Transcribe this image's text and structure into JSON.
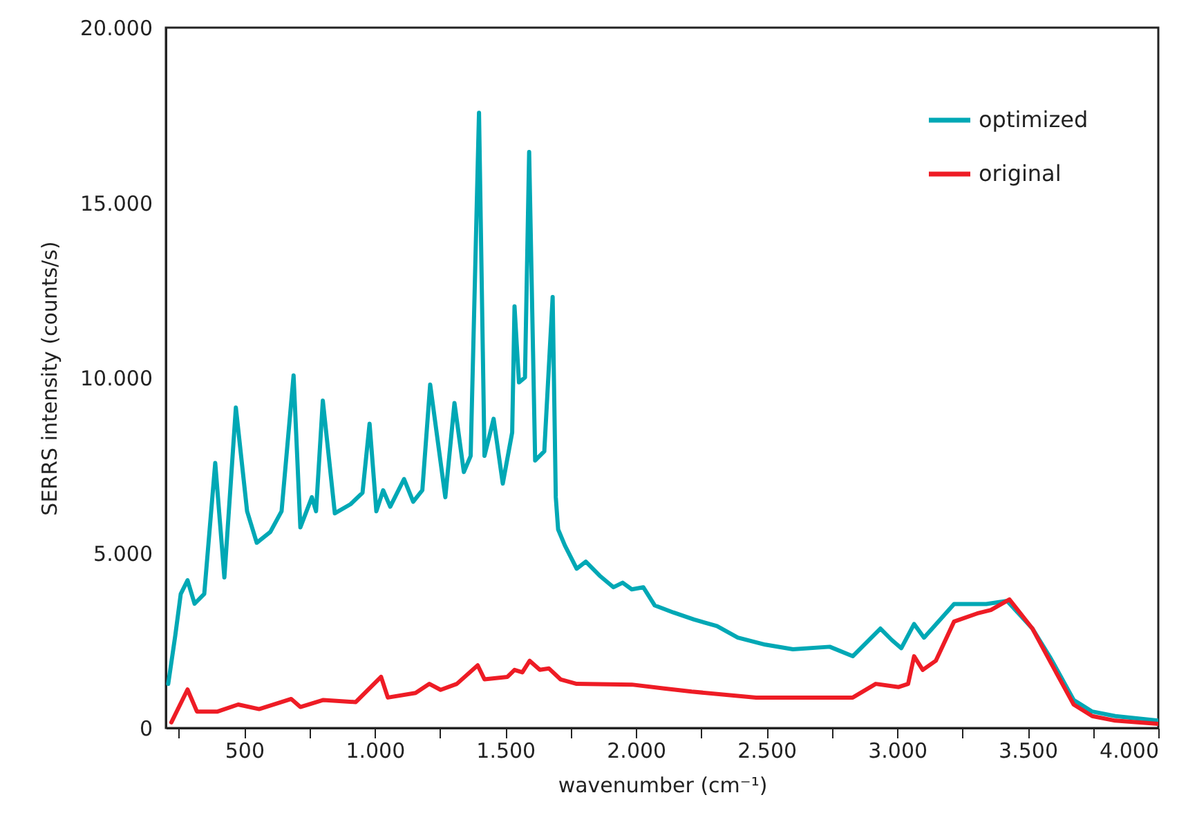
{
  "chart_data": {
    "type": "line",
    "xlabel": "wavenumber (cm⁻¹)",
    "ylabel": "SERRS intensity (counts/s)",
    "xlim": [
      200,
      4000
    ],
    "ylim": [
      0,
      20000
    ],
    "xticks": [
      {
        "value": 250,
        "label": null
      },
      500,
      {
        "value": 750,
        "label": null
      },
      {
        "value": 1000,
        "label": "1.000"
      },
      {
        "value": 1250,
        "label": null
      },
      {
        "value": 1500,
        "label": "1.500"
      },
      {
        "value": 1750,
        "label": null
      },
      {
        "value": 2000,
        "label": "2.000"
      },
      {
        "value": 2250,
        "label": null
      },
      {
        "value": 2500,
        "label": "2.500"
      },
      {
        "value": 2750,
        "label": null
      },
      {
        "value": 3000,
        "label": "3.000"
      },
      {
        "value": 3250,
        "label": null
      },
      {
        "value": 3500,
        "label": "3.500"
      },
      {
        "value": 3750,
        "label": null
      },
      {
        "value": 4000,
        "label": "4.000"
      }
    ],
    "yticks": [
      0,
      {
        "value": 5000,
        "label": "5.000"
      },
      {
        "value": 10000,
        "label": "10.000"
      },
      {
        "value": 15000,
        "label": "15.000"
      },
      {
        "value": 20000,
        "label": "20.000"
      }
    ],
    "legend": "top right",
    "grid": false,
    "marker": "none",
    "line_style": "solid",
    "series": [
      {
        "name": "optimized",
        "color": "#00a8b5",
        "x": [
          209,
          236,
          257,
          283,
          310,
          347,
          389,
          424,
          468,
          511,
          548,
          600,
          643,
          689,
          715,
          759,
          775,
          801,
          847,
          907,
          953,
          980,
          1006,
          1032,
          1059,
          1112,
          1147,
          1182,
          1212,
          1270,
          1305,
          1341,
          1367,
          1399,
          1420,
          1455,
          1490,
          1526,
          1535,
          1552,
          1575,
          1591,
          1614,
          1649,
          1681,
          1693,
          1702,
          1728,
          1773,
          1808,
          1861,
          1914,
          1949,
          1984,
          2028,
          2072,
          2143,
          2222,
          2310,
          2390,
          2495,
          2601,
          2742,
          2830,
          2936,
          2980,
          3016,
          3065,
          3103,
          3218,
          3341,
          3421,
          3518,
          3588,
          3676,
          3747,
          3835,
          4000
        ],
        "values": [
          1260,
          2640,
          3830,
          4220,
          3550,
          3830,
          7570,
          4300,
          9150,
          6190,
          5290,
          5600,
          6190,
          10070,
          5730,
          6590,
          6190,
          9350,
          6130,
          6390,
          6720,
          8690,
          6190,
          6790,
          6320,
          7110,
          6460,
          6790,
          9810,
          6590,
          9280,
          7310,
          7770,
          17570,
          7770,
          8830,
          6980,
          8440,
          12040,
          9870,
          10010,
          16450,
          7640,
          7900,
          12310,
          6590,
          5670,
          5210,
          4550,
          4750,
          4350,
          4020,
          4150,
          3960,
          4020,
          3500,
          3300,
          3100,
          2910,
          2580,
          2380,
          2250,
          2320,
          2050,
          2840,
          2510,
          2280,
          2970,
          2580,
          3540,
          3540,
          3630,
          2840,
          1990,
          800,
          470,
          340,
          210
        ]
      },
      {
        "name": "original",
        "color": "#ee1c25",
        "x": [
          221,
          283,
          319,
          398,
          477,
          557,
          680,
          715,
          803,
          927,
          1024,
          1050,
          1156,
          1209,
          1252,
          1314,
          1394,
          1420,
          1508,
          1535,
          1565,
          1593,
          1632,
          1667,
          1711,
          1773,
          1984,
          2108,
          2213,
          2460,
          2830,
          2918,
          3006,
          3042,
          3065,
          3098,
          3148,
          3218,
          3306,
          3359,
          3430,
          3518,
          3588,
          3676,
          3747,
          3835,
          4000
        ],
        "values": [
          160,
          1100,
          470,
          470,
          670,
          540,
          830,
          600,
          800,
          740,
          1460,
          870,
          1000,
          1260,
          1090,
          1260,
          1790,
          1390,
          1460,
          1660,
          1590,
          1920,
          1660,
          1700,
          1390,
          1260,
          1240,
          1130,
          1040,
          870,
          870,
          1260,
          1170,
          1260,
          2050,
          1660,
          1920,
          3040,
          3270,
          3370,
          3670,
          2840,
          1870,
          670,
          340,
          210,
          120
        ]
      }
    ]
  }
}
